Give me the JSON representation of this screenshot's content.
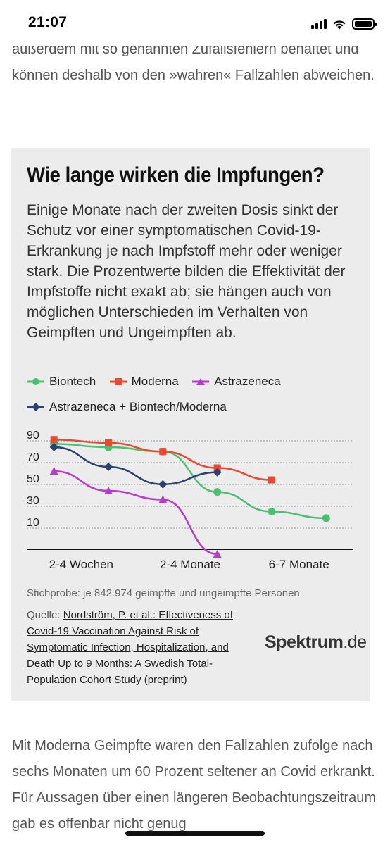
{
  "status_bar": {
    "time": "21:07"
  },
  "article": {
    "top_paragraph": "außerdem mit so genannten Zufallsfehlern behaftet und können deshalb von den »wahren« Fallzahlen abweichen.",
    "bottom_paragraph": "Mit Moderna Geimpfte waren den Fallzahlen zufolge nach sechs Monaten um 60 Prozent seltener an Covid erkrankt. Für Aussagen über einen längeren Beobachtungszeitraum gab es offenbar nicht genug"
  },
  "infobox": {
    "title": "Wie lange wirken die Impfungen?",
    "description": "Einige Monate nach der zweiten Dosis sinkt der Schutz vor einer symptomatischen Covid-19-Erkrankung je nach Impfstoff mehr oder weniger stark. Die Prozentwerte bilden die Effektivität der Impfstoffe nicht exakt ab; sie hängen auch von möglichen Unterschieden im Verhalten von Geimpften und Ungeimpften ab.",
    "sample": "Stichprobe: je 842.974 geimpfte und ungeimpfte Personen",
    "source_prefix": "Quelle: ",
    "source_link": "Nordström, P. et al.: Effectiveness of Covid-19 Vaccination Against Risk of Symptomatic Infection, Hospitalization, and Death Up to 9 Months: A Swedish Total-Population Cohort Study (preprint)",
    "logo_bold": "Spektrum",
    "logo_suffix": ".de"
  },
  "chart_data": {
    "type": "line",
    "x_labels": [
      "2-4 Wochen",
      "2-4 Monate",
      "6-7 Monate"
    ],
    "y_ticks": [
      10,
      30,
      50,
      70,
      90
    ],
    "ylim": [
      -10,
      95
    ],
    "xlim": [
      0,
      6
    ],
    "series": [
      {
        "name": "Biontech",
        "color": "#4cbf72",
        "marker": "circle",
        "x": [
          0.5,
          1.5,
          2.5,
          3.5,
          4.5,
          5.5
        ],
        "values": [
          82,
          79,
          75,
          38,
          20,
          14
        ]
      },
      {
        "name": "Moderna",
        "color": "#e8492f",
        "marker": "square",
        "x": [
          0.5,
          1.5,
          2.5,
          3.5,
          4.5
        ],
        "values": [
          86,
          83,
          75,
          60,
          49
        ]
      },
      {
        "name": "Astrazeneca",
        "color": "#b63ccc",
        "marker": "triangle",
        "x": [
          0.5,
          1.5,
          2.5,
          3.5
        ],
        "values": [
          57,
          39,
          31,
          -19
        ]
      },
      {
        "name": "Astrazeneca + Biontech/Moderna",
        "color": "#2b3f73",
        "marker": "diamond",
        "x": [
          0.5,
          1.5,
          2.5,
          3.5
        ],
        "values": [
          79,
          61,
          45,
          56
        ]
      }
    ]
  }
}
